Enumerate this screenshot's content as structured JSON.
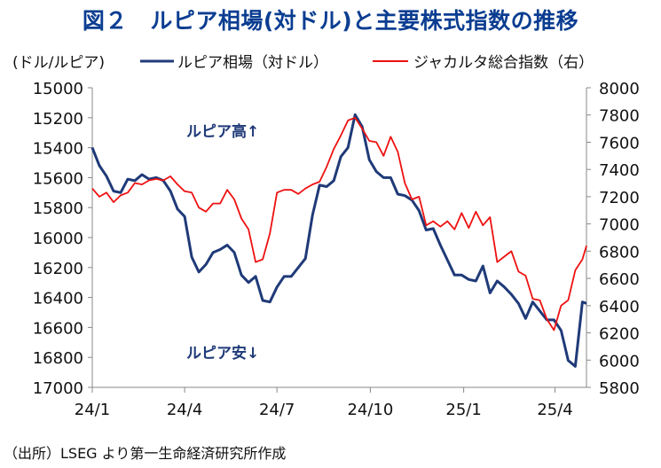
{
  "title": "図２　ルピア相場(対ドル)と主要株式指数の推移",
  "source": "（出所）LSEG より第一生命経済研究所作成",
  "chart_data": {
    "type": "line",
    "left_axis_unit": "(ドル/ルピア)",
    "annotations": {
      "up": "ルピア高↑",
      "down": "ルピア安↓"
    },
    "x_ticks": [
      "24/1",
      "24/4",
      "24/7",
      "24/10",
      "25/1",
      "25/4"
    ],
    "y_left": {
      "min": 15000,
      "max": 17000,
      "inverted": true,
      "ticks": [
        15000,
        15200,
        15400,
        15600,
        15800,
        16000,
        16200,
        16400,
        16600,
        16800,
        17000
      ]
    },
    "y_right": {
      "min": 5800,
      "max": 8000,
      "ticks": [
        5800,
        6000,
        6200,
        6400,
        6600,
        6800,
        7000,
        7200,
        7400,
        7600,
        7800,
        8000
      ]
    },
    "x_range": [
      "2024-01-01",
      "2025-05-02"
    ],
    "grid": false,
    "legend_position": "top",
    "series": [
      {
        "name": "ルピア相場（対ドル）",
        "axis": "left",
        "color": "#1f3a78",
        "x": [
          "2024-01-01",
          "2024-01-08",
          "2024-01-15",
          "2024-01-22",
          "2024-01-29",
          "2024-02-05",
          "2024-02-12",
          "2024-02-19",
          "2024-02-26",
          "2024-03-04",
          "2024-03-11",
          "2024-03-18",
          "2024-03-25",
          "2024-04-01",
          "2024-04-08",
          "2024-04-15",
          "2024-04-22",
          "2024-04-29",
          "2024-05-06",
          "2024-05-13",
          "2024-05-20",
          "2024-05-27",
          "2024-06-03",
          "2024-06-10",
          "2024-06-17",
          "2024-06-24",
          "2024-07-01",
          "2024-07-08",
          "2024-07-15",
          "2024-07-22",
          "2024-07-29",
          "2024-08-05",
          "2024-08-12",
          "2024-08-19",
          "2024-08-26",
          "2024-09-02",
          "2024-09-09",
          "2024-09-16",
          "2024-09-23",
          "2024-09-30",
          "2024-10-07",
          "2024-10-14",
          "2024-10-21",
          "2024-10-28",
          "2024-11-04",
          "2024-11-11",
          "2024-11-18",
          "2024-11-25",
          "2024-12-02",
          "2024-12-09",
          "2024-12-16",
          "2024-12-23",
          "2024-12-30",
          "2025-01-06",
          "2025-01-13",
          "2025-01-20",
          "2025-01-27",
          "2025-02-03",
          "2025-02-10",
          "2025-02-17",
          "2025-02-24",
          "2025-03-03",
          "2025-03-10",
          "2025-03-17",
          "2025-03-24",
          "2025-03-31",
          "2025-04-07",
          "2025-04-14",
          "2025-04-21",
          "2025-04-28",
          "2025-05-02"
        ],
        "values": [
          15400,
          15520,
          15590,
          15690,
          15700,
          15610,
          15620,
          15580,
          15610,
          15600,
          15620,
          15690,
          15810,
          15860,
          16130,
          16230,
          16180,
          16100,
          16080,
          16050,
          16100,
          16250,
          16300,
          16260,
          16420,
          16430,
          16330,
          16260,
          16260,
          16200,
          16140,
          15850,
          15650,
          15660,
          15620,
          15460,
          15400,
          15180,
          15260,
          15480,
          15560,
          15600,
          15600,
          15710,
          15720,
          15750,
          15820,
          15950,
          15940,
          16050,
          16150,
          16250,
          16250,
          16280,
          16290,
          16190,
          16370,
          16290,
          16330,
          16380,
          16440,
          16540,
          16430,
          16490,
          16550,
          16550,
          16620,
          16820,
          16860,
          16430,
          16440
        ]
      },
      {
        "name": "ジャカルタ総合指数（右）",
        "axis": "right",
        "color": "#ee1111",
        "x": [
          "2024-01-01",
          "2024-01-08",
          "2024-01-15",
          "2024-01-22",
          "2024-01-29",
          "2024-02-05",
          "2024-02-12",
          "2024-02-19",
          "2024-02-26",
          "2024-03-04",
          "2024-03-11",
          "2024-03-18",
          "2024-03-25",
          "2024-04-01",
          "2024-04-08",
          "2024-04-15",
          "2024-04-22",
          "2024-04-29",
          "2024-05-06",
          "2024-05-13",
          "2024-05-20",
          "2024-05-27",
          "2024-06-03",
          "2024-06-10",
          "2024-06-17",
          "2024-06-24",
          "2024-07-01",
          "2024-07-08",
          "2024-07-15",
          "2024-07-22",
          "2024-07-29",
          "2024-08-05",
          "2024-08-12",
          "2024-08-19",
          "2024-08-26",
          "2024-09-02",
          "2024-09-09",
          "2024-09-16",
          "2024-09-23",
          "2024-09-30",
          "2024-10-07",
          "2024-10-14",
          "2024-10-21",
          "2024-10-28",
          "2024-11-04",
          "2024-11-11",
          "2024-11-18",
          "2024-11-25",
          "2024-12-02",
          "2024-12-09",
          "2024-12-16",
          "2024-12-23",
          "2024-12-30",
          "2025-01-06",
          "2025-01-13",
          "2025-01-20",
          "2025-01-27",
          "2025-02-03",
          "2025-02-10",
          "2025-02-17",
          "2025-02-24",
          "2025-03-03",
          "2025-03-10",
          "2025-03-17",
          "2025-03-24",
          "2025-03-31",
          "2025-04-07",
          "2025-04-14",
          "2025-04-21",
          "2025-04-28",
          "2025-05-02"
        ],
        "values": [
          7260,
          7200,
          7230,
          7160,
          7210,
          7230,
          7300,
          7290,
          7320,
          7330,
          7320,
          7350,
          7290,
          7240,
          7230,
          7120,
          7090,
          7150,
          7150,
          7250,
          7180,
          7040,
          6960,
          6720,
          6740,
          6930,
          7230,
          7250,
          7250,
          7220,
          7260,
          7290,
          7310,
          7420,
          7550,
          7650,
          7760,
          7780,
          7700,
          7610,
          7600,
          7500,
          7640,
          7530,
          7300,
          7180,
          7200,
          6990,
          7020,
          6980,
          7020,
          6960,
          7080,
          6970,
          7090,
          6990,
          7050,
          6720,
          6760,
          6800,
          6650,
          6620,
          6450,
          6440,
          6300,
          6220,
          6400,
          6440,
          6660,
          6740,
          6840
        ]
      }
    ]
  }
}
